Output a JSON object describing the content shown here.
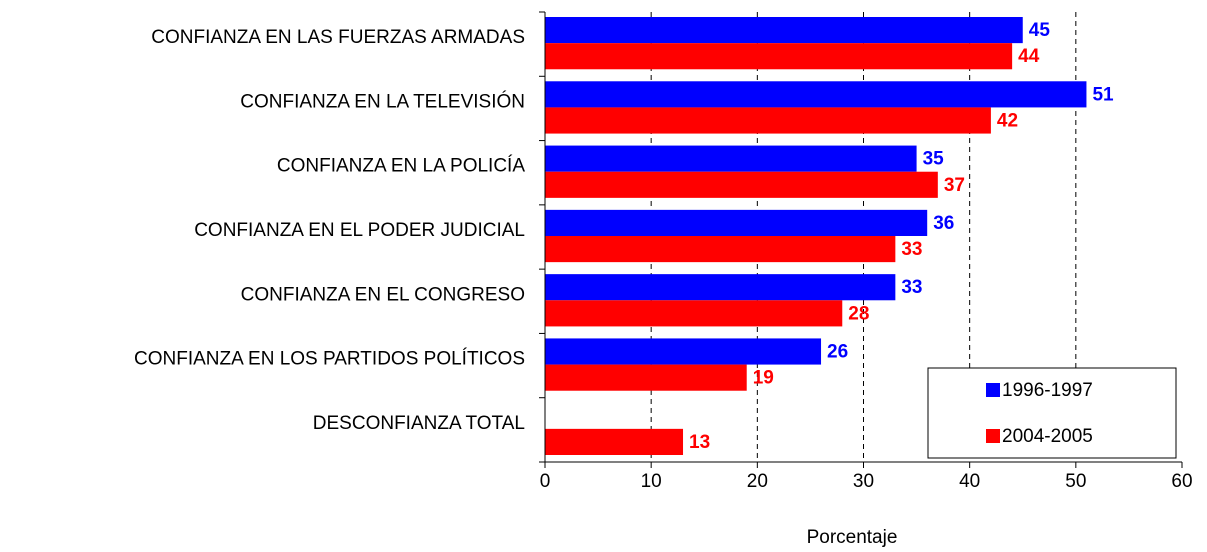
{
  "chart_data": {
    "type": "bar",
    "orientation": "horizontal",
    "categories": [
      "CONFIANZA EN LAS FUERZAS ARMADAS",
      "CONFIANZA EN LA TELEVISIÓN",
      "CONFIANZA EN LA POLICÍA",
      "CONFIANZA EN EL PODER JUDICIAL",
      "CONFIANZA EN EL CONGRESO",
      "CONFIANZA EN LOS PARTIDOS POLÍTICOS",
      "DESCONFIANZA TOTAL"
    ],
    "series": [
      {
        "name": "1996-1997",
        "color": "#0000ff",
        "values": [
          45,
          51,
          35,
          36,
          33,
          26,
          null
        ]
      },
      {
        "name": "2004-2005",
        "color": "#ff0000",
        "values": [
          44,
          42,
          37,
          33,
          28,
          19,
          13
        ]
      }
    ],
    "xlabel": "Porcentaje",
    "xlim": [
      0,
      60
    ],
    "xticks": [
      0,
      10,
      20,
      30,
      40,
      50,
      60
    ],
    "grid": true,
    "legend": "lower right"
  }
}
